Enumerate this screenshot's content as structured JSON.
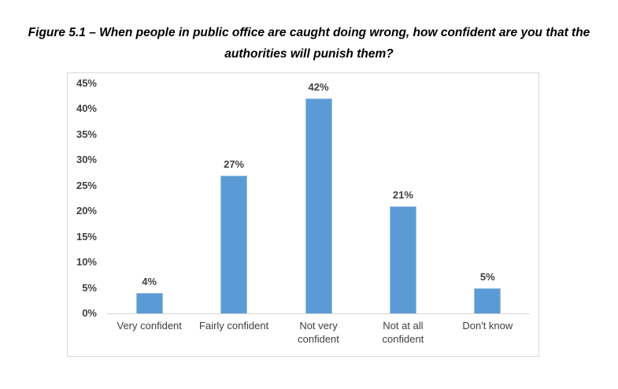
{
  "figure": {
    "label": "Figure 5.1",
    "title": "Figure 5.1 – When people in public office are caught doing wrong, how confident are you that the authorities will punish them?"
  },
  "chart_data": {
    "type": "bar",
    "title": "Figure 5.1 – When people in public office are caught doing wrong, how confident are you that the authorities will punish them?",
    "categories": [
      "Very confident",
      "Fairly confident",
      "Not very confident",
      "Not at all confident",
      "Don't know"
    ],
    "values": [
      4,
      27,
      42,
      21,
      5
    ],
    "value_labels": [
      "4%",
      "27%",
      "42%",
      "21%",
      "5%"
    ],
    "xlabel": "",
    "ylabel": "",
    "ylim": [
      0,
      45
    ],
    "ytick_step": 5,
    "ytick_labels": [
      "0%",
      "5%",
      "10%",
      "15%",
      "20%",
      "25%",
      "30%",
      "35%",
      "40%",
      "45%"
    ],
    "grid": false,
    "legend": false,
    "colors": {
      "bar_fill": "#5B9BD5",
      "bar_border": "#9DC3E6",
      "axis_line": "#D6D6D6",
      "tick_label": "#404040",
      "data_label": "#404040",
      "chart_border": "#D9D9D9",
      "background": "#FFFFFF",
      "title_text": "#000000"
    }
  }
}
